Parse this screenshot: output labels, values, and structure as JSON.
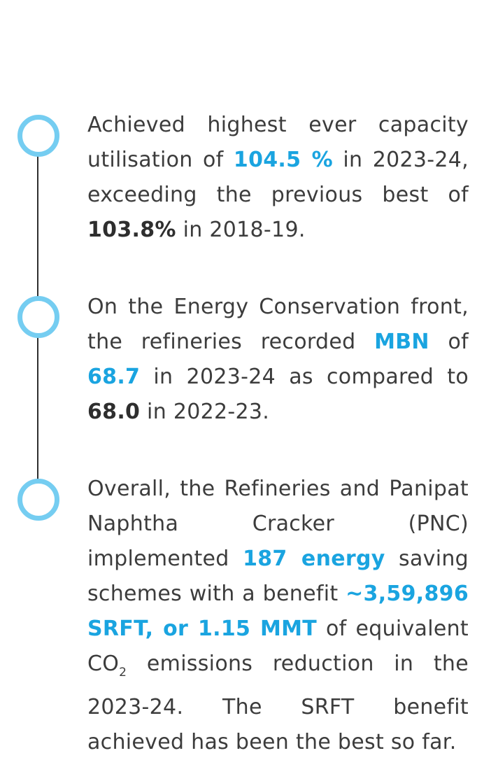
{
  "items": [
    {
      "t1": "Achieved highest ever capacity utilisation of ",
      "b1": "104.5 %",
      "t2": " in 2023-24, exceeding the previous best of ",
      "b2": "103.8%",
      "t3": " in 2018-19."
    },
    {
      "t1": "On the Energy Conservation front, the refineries recorded ",
      "b1": "MBN",
      "t2": " of ",
      "b2": "68.7",
      "t3": " in 2023-24 as compared to ",
      "b3": "68.0",
      "t4": " in 2022-23."
    },
    {
      "t1": "Overall, the Refineries and Panipat Naphtha Cracker (PNC) implemented ",
      "b1": "187 energy",
      "t2": " saving schemes with a benefit ",
      "b2": "~3,59,896 SRFT, or 1.15 MMT",
      "t3": " of equivalent CO",
      "sub": "2",
      "t4": " emissions reduction in the 2023-24. The SRFT benefit achieved has been the best so far."
    }
  ],
  "colors": {
    "accent_blue": "#1aa4e0",
    "node_ring": "#75cdf1",
    "text": "#3c3c3c",
    "emphasis_dark": "#2e2e2e",
    "line": "#2e2e2e"
  }
}
